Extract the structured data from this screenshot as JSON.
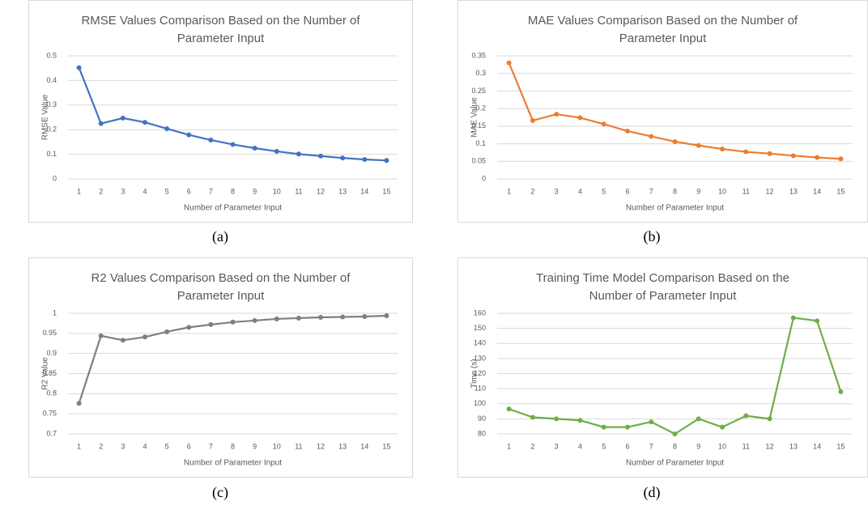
{
  "chart_data": [
    {
      "type": "line",
      "title": "RMSE Values Comparison Based on the Number of Parameter Input",
      "caption": "(a)",
      "x_label": "Number of Parameter Input",
      "y_label": "RMSE Value",
      "categories": [
        "1",
        "2",
        "3",
        "4",
        "5",
        "6",
        "7",
        "8",
        "9",
        "10",
        "11",
        "12",
        "13",
        "14",
        "15"
      ],
      "values": [
        0.452,
        0.225,
        0.247,
        0.23,
        0.204,
        0.179,
        0.158,
        0.14,
        0.125,
        0.112,
        0.101,
        0.093,
        0.085,
        0.079,
        0.075
      ],
      "color": "#4472c4",
      "ylim": [
        0,
        0.5
      ],
      "yticks": [
        0,
        0.1,
        0.2,
        0.3,
        0.4,
        0.5
      ],
      "grid": true
    },
    {
      "type": "line",
      "title": "MAE Values Comparison Based on the Number of Parameter Input",
      "caption": "(b)",
      "x_label": "Number of Parameter Input",
      "y_label": "MAE Value",
      "categories": [
        "1",
        "2",
        "3",
        "4",
        "5",
        "6",
        "7",
        "8",
        "9",
        "10",
        "11",
        "12",
        "13",
        "14",
        "15"
      ],
      "values": [
        0.33,
        0.166,
        0.184,
        0.174,
        0.156,
        0.136,
        0.121,
        0.106,
        0.095,
        0.085,
        0.077,
        0.072,
        0.066,
        0.061,
        0.057
      ],
      "color": "#ed7d31",
      "ylim": [
        0,
        0.35
      ],
      "yticks": [
        0,
        0.05,
        0.1,
        0.15,
        0.2,
        0.25,
        0.3,
        0.35
      ],
      "grid": true
    },
    {
      "type": "line",
      "title": "R2 Values Comparison Based on the Number of Parameter Input",
      "caption": "(c)",
      "x_label": "Number of Parameter Input",
      "y_label": "R2 Value",
      "categories": [
        "1",
        "2",
        "3",
        "4",
        "5",
        "6",
        "7",
        "8",
        "9",
        "10",
        "11",
        "12",
        "13",
        "14",
        "15"
      ],
      "values": [
        0.776,
        0.944,
        0.933,
        0.941,
        0.954,
        0.965,
        0.972,
        0.978,
        0.982,
        0.986,
        0.988,
        0.99,
        0.991,
        0.992,
        0.994
      ],
      "color": "#7f7f7f",
      "ylim": [
        0.7,
        1
      ],
      "yticks": [
        0.7,
        0.75,
        0.8,
        0.85,
        0.9,
        0.95,
        1
      ],
      "grid": true
    },
    {
      "type": "line",
      "title": "Training Time Model Comparison Based on the Number of Parameter Input",
      "caption": "(d)",
      "x_label": "Number of Parameter Input",
      "y_label": "Time (s)",
      "categories": [
        "1",
        "2",
        "3",
        "4",
        "5",
        "6",
        "7",
        "8",
        "9",
        "10",
        "11",
        "12",
        "13",
        "14",
        "15"
      ],
      "values": [
        96.5,
        91,
        90,
        89,
        84.5,
        84.5,
        88,
        80,
        90,
        84.5,
        92,
        90,
        157,
        155,
        108
      ],
      "color": "#70ad47",
      "ylim": [
        80,
        160
      ],
      "yticks": [
        80,
        90,
        100,
        110,
        120,
        130,
        140,
        150,
        160
      ],
      "grid": true
    }
  ]
}
